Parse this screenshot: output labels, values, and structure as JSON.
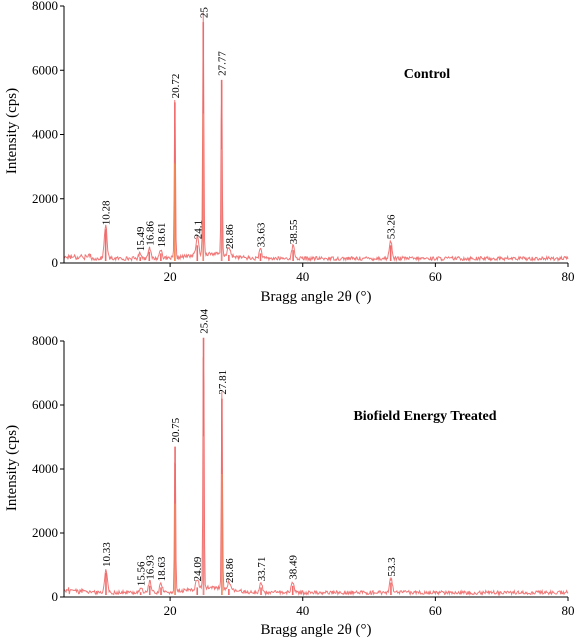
{
  "chart_data": [
    {
      "type": "line",
      "title": "Control",
      "xlabel": "Bragg angle 2θ (°)",
      "ylabel": "Intensity (cps)",
      "xlim": [
        4,
        80
      ],
      "ylim": [
        0,
        8000
      ],
      "x_ticks": [
        20,
        40,
        60,
        80
      ],
      "y_ticks": [
        0,
        2000,
        4000,
        6000,
        8000
      ],
      "grid": false,
      "peaks": [
        {
          "x": 10.28,
          "y": 1050,
          "label": "10.28"
        },
        {
          "x": 15.49,
          "y": 180,
          "label": "15.49"
        },
        {
          "x": 16.86,
          "y": 350,
          "label": "16.86"
        },
        {
          "x": 18.61,
          "y": 300,
          "label": "18.61"
        },
        {
          "x": 20.72,
          "y": 5000,
          "label": "20.72"
        },
        {
          "x": 24.1,
          "y": 550,
          "label": "24.1"
        },
        {
          "x": 25,
          "y": 7500,
          "label": "25"
        },
        {
          "x": 27.77,
          "y": 5700,
          "label": "27.77"
        },
        {
          "x": 28.86,
          "y": 250,
          "label": "28.86"
        },
        {
          "x": 33.63,
          "y": 300,
          "label": "33.63"
        },
        {
          "x": 38.55,
          "y": 400,
          "label": "38.55"
        },
        {
          "x": 53.26,
          "y": 550,
          "label": "53.26"
        }
      ]
    },
    {
      "type": "line",
      "title": "Biofield Energy Treated",
      "xlabel": "Bragg angle 2θ (°)",
      "ylabel": "Intensity (cps)",
      "xlim": [
        4,
        80
      ],
      "ylim": [
        0,
        8000
      ],
      "x_ticks": [
        20,
        40,
        60,
        80
      ],
      "y_ticks": [
        0,
        2000,
        4000,
        6000,
        8000
      ],
      "grid": false,
      "peaks": [
        {
          "x": 10.33,
          "y": 750,
          "label": "10.33"
        },
        {
          "x": 15.56,
          "y": 150,
          "label": "15.56"
        },
        {
          "x": 16.93,
          "y": 350,
          "label": "16.93"
        },
        {
          "x": 18.63,
          "y": 300,
          "label": "18.63"
        },
        {
          "x": 20.75,
          "y": 4700,
          "label": "20.75"
        },
        {
          "x": 24.09,
          "y": 300,
          "label": "24.09"
        },
        {
          "x": 25.04,
          "y": 8100,
          "label": "25.04"
        },
        {
          "x": 27.81,
          "y": 6200,
          "label": "27.81"
        },
        {
          "x": 28.86,
          "y": 250,
          "label": "28.86"
        },
        {
          "x": 33.71,
          "y": 300,
          "label": "33.71"
        },
        {
          "x": 38.49,
          "y": 350,
          "label": "38.49"
        },
        {
          "x": 53.3,
          "y": 450,
          "label": "53.3"
        }
      ]
    }
  ]
}
